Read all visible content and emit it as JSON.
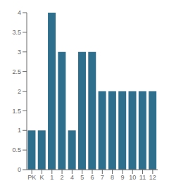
{
  "chart_data": {
    "type": "bar",
    "categories": [
      "PK",
      "K",
      "1",
      "2",
      "4",
      "5",
      "6",
      "7",
      "8",
      "9",
      "10",
      "11",
      "12"
    ],
    "values": [
      1,
      1,
      4,
      3,
      1,
      3,
      3,
      2,
      2,
      2,
      2,
      2,
      2
    ],
    "color": "#2e6f8e",
    "ylim": [
      0,
      4
    ],
    "yticks": [
      0,
      0.5,
      1,
      1.5,
      2,
      2.5,
      3,
      3.5,
      4
    ]
  }
}
